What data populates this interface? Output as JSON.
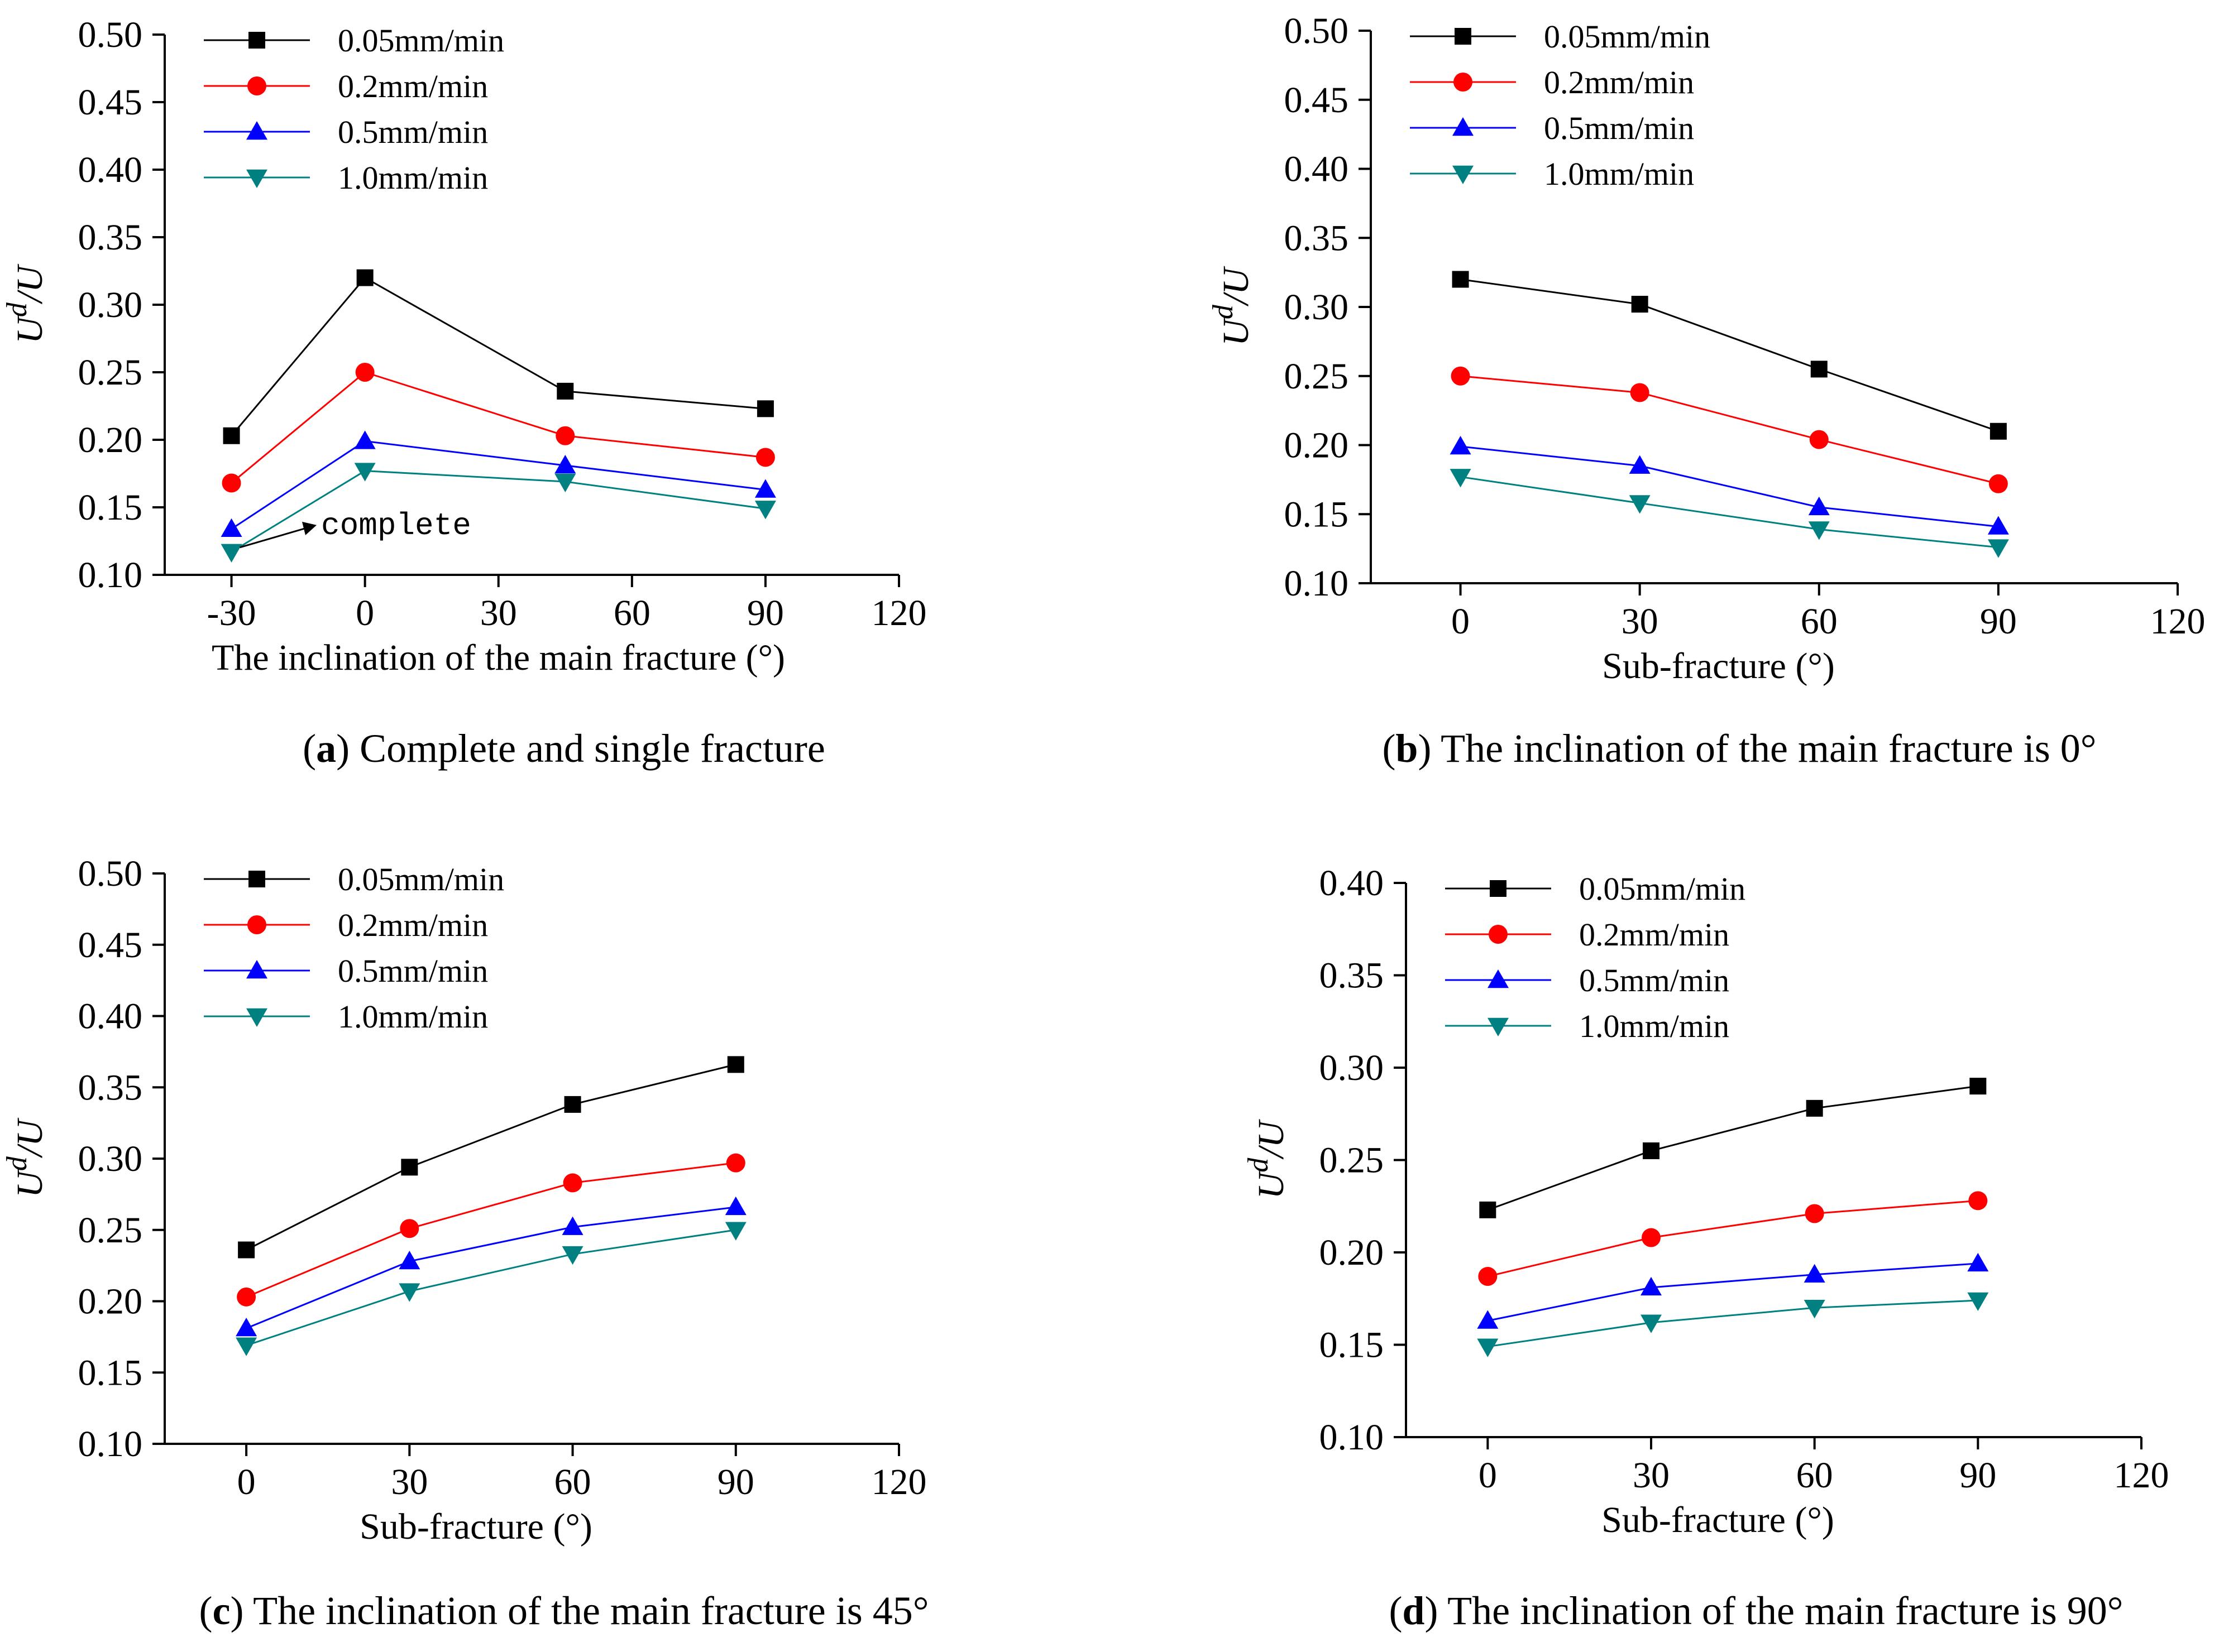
{
  "figure": {
    "colors": {
      "0.05mm/min": "#000000",
      "0.2mm/min": "#ff0000",
      "0.5mm/min": "#0000ff",
      "1.0mm/min": "#008080"
    }
  },
  "chart_data": [
    {
      "id": "a",
      "type": "line",
      "caption_letter": "a",
      "caption_text": " Complete and single fracture",
      "xlabel": "The inclination of the main fracture (°)",
      "ylabel_main": "U",
      "ylabel_sup": "d",
      "ylabel_tail": "/U",
      "xlim": [
        -45,
        120
      ],
      "ylim": [
        0.1,
        0.5
      ],
      "xticks": [
        -30,
        0,
        30,
        60,
        90,
        120
      ],
      "yticks": [
        0.1,
        0.15,
        0.2,
        0.25,
        0.3,
        0.35,
        0.4,
        0.45,
        0.5
      ],
      "x": [
        -30,
        0,
        45,
        90
      ],
      "series": [
        {
          "name": "0.05mm/min",
          "marker": "square",
          "values": [
            0.203,
            0.32,
            0.236,
            0.223
          ]
        },
        {
          "name": "0.2mm/min",
          "marker": "circle",
          "values": [
            0.168,
            0.25,
            0.203,
            0.187
          ]
        },
        {
          "name": "0.5mm/min",
          "marker": "triangle-up",
          "values": [
            0.134,
            0.199,
            0.181,
            0.163
          ]
        },
        {
          "name": "1.0mm/min",
          "marker": "triangle-down",
          "values": [
            0.117,
            0.177,
            0.169,
            0.149
          ]
        }
      ],
      "annotation": {
        "text": "complete",
        "x": -30,
        "y": 0.117
      }
    },
    {
      "id": "b",
      "type": "line",
      "caption_letter": "b",
      "caption_text": " The inclination of the main fracture is 0°",
      "xlabel": "Sub-fracture (°)",
      "ylabel_main": "U",
      "ylabel_sup": "d",
      "ylabel_tail": "/U",
      "xlim": [
        -15,
        120
      ],
      "ylim": [
        0.1,
        0.5
      ],
      "xticks": [
        0,
        30,
        60,
        90,
        120
      ],
      "yticks": [
        0.1,
        0.15,
        0.2,
        0.25,
        0.3,
        0.35,
        0.4,
        0.45,
        0.5
      ],
      "x": [
        0,
        30,
        60,
        90
      ],
      "series": [
        {
          "name": "0.05mm/min",
          "marker": "square",
          "values": [
            0.32,
            0.302,
            0.255,
            0.21
          ]
        },
        {
          "name": "0.2mm/min",
          "marker": "circle",
          "values": [
            0.25,
            0.238,
            0.204,
            0.172
          ]
        },
        {
          "name": "0.5mm/min",
          "marker": "triangle-up",
          "values": [
            0.199,
            0.185,
            0.155,
            0.141
          ]
        },
        {
          "name": "1.0mm/min",
          "marker": "triangle-down",
          "values": [
            0.177,
            0.158,
            0.139,
            0.126
          ]
        }
      ]
    },
    {
      "id": "c",
      "type": "line",
      "caption_letter": "c",
      "caption_text": " The inclination of the main fracture is 45°",
      "xlabel": "Sub-fracture (°)",
      "ylabel_main": "U",
      "ylabel_sup": "d",
      "ylabel_tail": "/U",
      "xlim": [
        -15,
        120
      ],
      "ylim": [
        0.1,
        0.5
      ],
      "xticks": [
        0,
        30,
        60,
        90,
        120
      ],
      "yticks": [
        0.1,
        0.15,
        0.2,
        0.25,
        0.3,
        0.35,
        0.4,
        0.45,
        0.5
      ],
      "x": [
        0,
        30,
        60,
        90
      ],
      "series": [
        {
          "name": "0.05mm/min",
          "marker": "square",
          "values": [
            0.236,
            0.294,
            0.338,
            0.366
          ]
        },
        {
          "name": "0.2mm/min",
          "marker": "circle",
          "values": [
            0.203,
            0.251,
            0.283,
            0.297
          ]
        },
        {
          "name": "0.5mm/min",
          "marker": "triangle-up",
          "values": [
            0.181,
            0.228,
            0.252,
            0.266
          ]
        },
        {
          "name": "1.0mm/min",
          "marker": "triangle-down",
          "values": [
            0.169,
            0.207,
            0.233,
            0.25
          ]
        }
      ]
    },
    {
      "id": "d",
      "type": "line",
      "caption_letter": "d",
      "caption_text": " The inclination of the main fracture is 90°",
      "xlabel": "Sub-fracture (°)",
      "ylabel_main": "U",
      "ylabel_sup": "d",
      "ylabel_tail": "/U",
      "xlim": [
        -15,
        120
      ],
      "ylim": [
        0.1,
        0.4
      ],
      "xticks": [
        0,
        30,
        60,
        90,
        120
      ],
      "yticks": [
        0.1,
        0.15,
        0.2,
        0.25,
        0.3,
        0.35,
        0.4
      ],
      "x": [
        0,
        30,
        60,
        90
      ],
      "series": [
        {
          "name": "0.05mm/min",
          "marker": "square",
          "values": [
            0.223,
            0.255,
            0.278,
            0.29
          ]
        },
        {
          "name": "0.2mm/min",
          "marker": "circle",
          "values": [
            0.187,
            0.208,
            0.221,
            0.228
          ]
        },
        {
          "name": "0.5mm/min",
          "marker": "triangle-up",
          "values": [
            0.163,
            0.181,
            0.188,
            0.194
          ]
        },
        {
          "name": "1.0mm/min",
          "marker": "triangle-down",
          "values": [
            0.149,
            0.162,
            0.17,
            0.174
          ]
        }
      ]
    }
  ]
}
